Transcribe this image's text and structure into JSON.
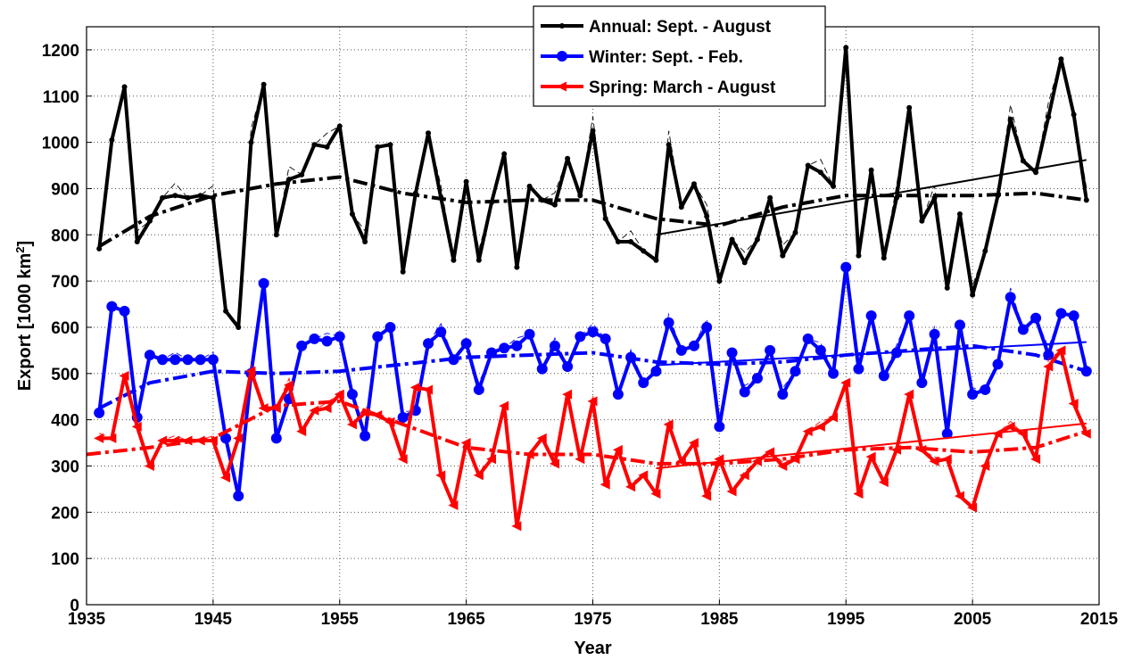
{
  "chart_data": {
    "type": "line",
    "title": "",
    "xlabel": "Year",
    "ylabel": "Export [1000 km²]",
    "ylabel_main": "Export [1000 km",
    "ylabel_sup": "2",
    "ylabel_end": "]",
    "xlim": [
      1935,
      2015
    ],
    "ylim": [
      0,
      1250
    ],
    "xticks": [
      "1935",
      "1945",
      "1955",
      "1965",
      "1975",
      "1985",
      "1995",
      "2005",
      "2015"
    ],
    "yticks": [
      "0",
      "100",
      "200",
      "300",
      "400",
      "500",
      "600",
      "700",
      "800",
      "900",
      "1000",
      "1100",
      "1200"
    ],
    "grid": true,
    "legend_position": "top-center",
    "years": [
      1936,
      1937,
      1938,
      1939,
      1940,
      1941,
      1942,
      1943,
      1944,
      1945,
      1946,
      1947,
      1948,
      1949,
      1950,
      1951,
      1952,
      1953,
      1954,
      1955,
      1956,
      1957,
      1958,
      1959,
      1960,
      1961,
      1962,
      1963,
      1964,
      1965,
      1966,
      1967,
      1968,
      1969,
      1970,
      1971,
      1972,
      1973,
      1974,
      1975,
      1976,
      1977,
      1978,
      1979,
      1980,
      1981,
      1982,
      1983,
      1984,
      1985,
      1986,
      1987,
      1988,
      1989,
      1990,
      1991,
      1992,
      1993,
      1994,
      1995,
      1996,
      1997,
      1998,
      1999,
      2000,
      2001,
      2002,
      2003,
      2004,
      2005,
      2006,
      2007,
      2008,
      2009,
      2010,
      2011,
      2012,
      2013,
      2014
    ],
    "series": [
      {
        "name": "Annual: Sept. - August",
        "color": "#000000",
        "marker": "dot",
        "values": [
          770,
          1005,
          1120,
          785,
          830,
          880,
          885,
          880,
          885,
          880,
          635,
          600,
          1000,
          1125,
          800,
          920,
          930,
          995,
          990,
          1035,
          845,
          785,
          990,
          995,
          720,
          890,
          1020,
          880,
          745,
          915,
          745,
          870,
          975,
          730,
          905,
          875,
          865,
          965,
          885,
          1025,
          835,
          785,
          785,
          765,
          745,
          995,
          860,
          910,
          840,
          700,
          790,
          740,
          790,
          880,
          755,
          805,
          950,
          935,
          905,
          1205,
          755,
          940,
          750,
          880,
          1075,
          830,
          880,
          685,
          845,
          670,
          765,
          885,
          1050,
          960,
          935,
          1055,
          1180,
          1060,
          875
        ],
        "smooth_x": [
          1936,
          1940,
          1945,
          1950,
          1955,
          1960,
          1965,
          1970,
          1975,
          1980,
          1985,
          1990,
          1995,
          2000,
          2005,
          2010,
          2014
        ],
        "smooth_y": [
          775,
          840,
          885,
          910,
          925,
          890,
          870,
          875,
          875,
          835,
          820,
          860,
          885,
          885,
          885,
          890,
          875
        ],
        "trend": {
          "x": [
            1980,
            2014
          ],
          "y": [
            800,
            962
          ]
        }
      },
      {
        "name": "Winter: Sept. - Feb.",
        "color": "#0000ff",
        "marker": "circle",
        "values": [
          415,
          645,
          635,
          405,
          540,
          530,
          530,
          530,
          530,
          530,
          360,
          235,
          500,
          695,
          360,
          445,
          560,
          575,
          570,
          580,
          455,
          365,
          580,
          600,
          405,
          420,
          565,
          590,
          530,
          565,
          465,
          545,
          555,
          560,
          585,
          510,
          560,
          515,
          580,
          590,
          575,
          455,
          535,
          480,
          505,
          610,
          550,
          560,
          600,
          385,
          545,
          460,
          490,
          550,
          455,
          505,
          575,
          550,
          500,
          730,
          510,
          625,
          495,
          545,
          625,
          480,
          585,
          370,
          605,
          455,
          465,
          520,
          665,
          595,
          620,
          540,
          630,
          625,
          505
        ],
        "smooth_x": [
          1936,
          1940,
          1945,
          1950,
          1955,
          1960,
          1965,
          1970,
          1975,
          1980,
          1985,
          1990,
          1995,
          2000,
          2005,
          2010,
          2014
        ],
        "smooth_y": [
          425,
          480,
          505,
          500,
          505,
          520,
          535,
          540,
          545,
          525,
          520,
          525,
          540,
          550,
          560,
          540,
          505
        ],
        "trend": {
          "x": [
            1980,
            2014
          ],
          "y": [
            518,
            568
          ]
        }
      },
      {
        "name": "Spring: March - August",
        "color": "#ff0000",
        "marker": "triangle-left",
        "values": [
          360,
          360,
          495,
          385,
          300,
          355,
          355,
          355,
          355,
          355,
          275,
          360,
          505,
          425,
          425,
          475,
          375,
          420,
          425,
          455,
          390,
          415,
          410,
          395,
          315,
          470,
          465,
          280,
          215,
          350,
          280,
          315,
          430,
          170,
          325,
          360,
          305,
          455,
          315,
          440,
          260,
          335,
          255,
          280,
          240,
          390,
          310,
          350,
          235,
          315,
          245,
          280,
          310,
          330,
          300,
          315,
          375,
          385,
          405,
          480,
          240,
          320,
          265,
          335,
          455,
          335,
          310,
          315,
          235,
          210,
          300,
          370,
          385,
          370,
          315,
          515,
          550,
          435,
          370
        ],
        "smooth_x": [
          1935,
          1940,
          1945,
          1950,
          1955,
          1960,
          1965,
          1970,
          1975,
          1980,
          1985,
          1990,
          1995,
          2000,
          2005,
          2010,
          2014
        ],
        "smooth_y": [
          325,
          340,
          360,
          430,
          440,
          390,
          340,
          325,
          325,
          305,
          305,
          315,
          335,
          340,
          330,
          340,
          375
        ],
        "trend": {
          "x": [
            1980,
            2014
          ],
          "y": [
            295,
            392
          ]
        }
      }
    ]
  }
}
